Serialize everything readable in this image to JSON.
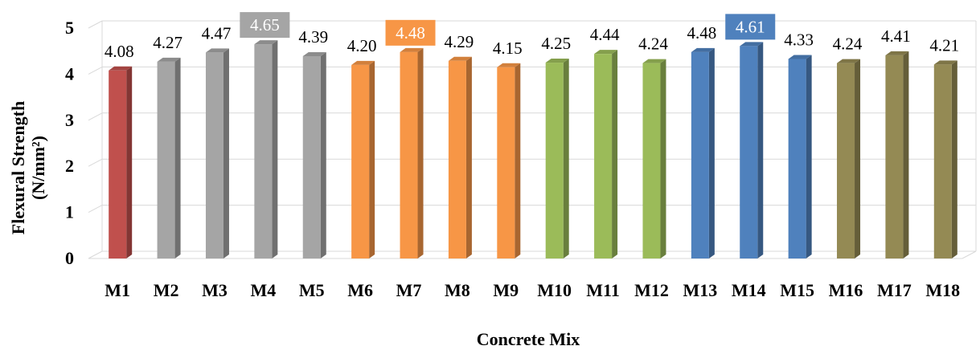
{
  "chart_data": {
    "type": "bar",
    "style": "3d-column",
    "categories": [
      "M1",
      "M2",
      "M3",
      "M4",
      "M5",
      "M6",
      "M7",
      "M8",
      "M9",
      "M10",
      "M11",
      "M12",
      "M13",
      "M14",
      "M15",
      "M16",
      "M17",
      "M18"
    ],
    "values": [
      4.08,
      4.27,
      4.47,
      4.65,
      4.39,
      4.2,
      4.48,
      4.29,
      4.15,
      4.25,
      4.44,
      4.24,
      4.48,
      4.61,
      4.33,
      4.24,
      4.41,
      4.21
    ],
    "value_labels": [
      "4.08",
      "4.27",
      "4.47",
      "4.65",
      "4.39",
      "4.20",
      "4.48",
      "4.29",
      "4.15",
      "4.25",
      "4.44",
      "4.24",
      "4.48",
      "4.61",
      "4.33",
      "4.24",
      "4.41",
      "4.21"
    ],
    "bar_colors": [
      "#c0504d",
      "#a5a5a5",
      "#a5a5a5",
      "#a5a5a5",
      "#a5a5a5",
      "#f79646",
      "#f79646",
      "#f79646",
      "#f79646",
      "#9bbb59",
      "#9bbb59",
      "#9bbb59",
      "#4f81bd",
      "#4f81bd",
      "#4f81bd",
      "#948a54",
      "#948a54",
      "#948a54"
    ],
    "highlighted_labels": [
      3,
      6,
      13
    ],
    "xlabel": "Concrete Mix",
    "ylabel_line1": "Flexural Strength",
    "ylabel_line2": "(N/mm²)",
    "ylim": [
      0,
      5
    ],
    "yticks": [
      "0",
      "1",
      "2",
      "3",
      "4",
      "5"
    ],
    "grid": true
  }
}
